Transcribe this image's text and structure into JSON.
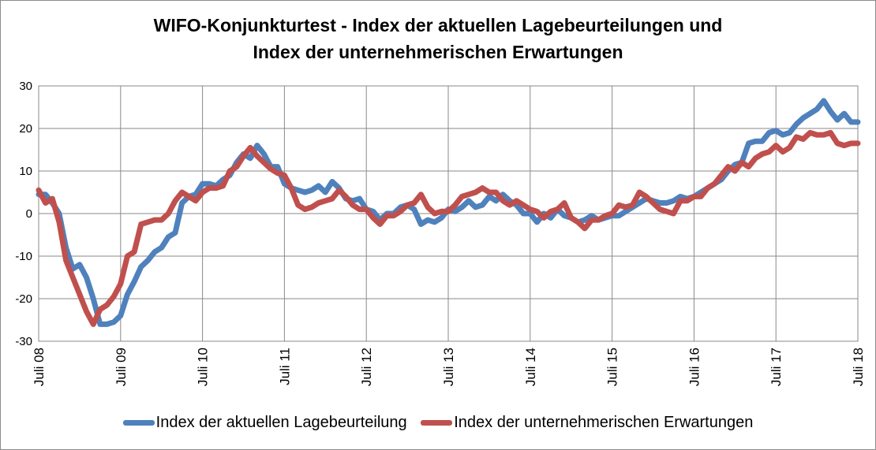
{
  "title_line1": "WIFO-Konjunkturtest - Index der aktuellen Lagebeurteilungen und",
  "title_line2": "Index der unternehmerischen Erwartungen",
  "chart_data": {
    "type": "line",
    "title": "WIFO-Konjunkturtest - Index der aktuellen Lagebeurteilungen und Index der unternehmerischen Erwartungen",
    "xlabel": "",
    "ylabel": "",
    "ylim": [
      -30,
      30
    ],
    "yticks": [
      -30,
      -20,
      -10,
      0,
      10,
      20,
      30
    ],
    "x_tick_labels": [
      "Juli 08",
      "Juli 09",
      "Juli 10",
      "Juli 11",
      "Juli 12",
      "Juli 13",
      "Juli 14",
      "Juli 15",
      "Juli 16",
      "Juli 17",
      "Juli 18"
    ],
    "grid": true,
    "legend_position": "bottom",
    "x_unit": "month index starting Juli 08",
    "series": [
      {
        "name": "Index der aktuellen Lagebeurteilung",
        "color": "#4f81bd",
        "values": [
          4.5,
          4.5,
          2.5,
          0,
          -8,
          -13,
          -12,
          -15,
          -20,
          -26,
          -26,
          -25.5,
          -24,
          -19,
          -16,
          -12.5,
          -11,
          -9,
          -8,
          -5.5,
          -4.5,
          2.5,
          4,
          4.5,
          7,
          7,
          6.5,
          8,
          9,
          12,
          14,
          13,
          16,
          14,
          11,
          11,
          7,
          6,
          5.5,
          5,
          5.5,
          6.5,
          5,
          7.5,
          6,
          3.5,
          3,
          3.5,
          1,
          0.5,
          -1.5,
          0,
          0,
          1.5,
          2,
          1,
          -2.5,
          -1.5,
          -2,
          -1,
          1,
          0.5,
          1.5,
          3,
          1.5,
          2,
          4,
          3,
          4.5,
          3,
          2,
          0,
          0,
          -2,
          0,
          -1,
          1,
          -0.5,
          -1,
          -2,
          -1.5,
          -0.5,
          -1.5,
          -1,
          -0.5,
          -0.5,
          0.5,
          1.5,
          2.5,
          3.5,
          3,
          2.5,
          2.5,
          3,
          4,
          3.5,
          4,
          5,
          6,
          7,
          8,
          10,
          11.5,
          12,
          16.5,
          17,
          17,
          19,
          19.5,
          18.5,
          19,
          21,
          22.5,
          23.5,
          24.5,
          26.5,
          24,
          22,
          23.5,
          21.5,
          21.5
        ]
      },
      {
        "name": "Index der unternehmerischen Erwartungen",
        "color": "#c0504d",
        "values": [
          5.5,
          2.5,
          3.5,
          -2,
          -11,
          -15,
          -19,
          -23,
          -26,
          -22.5,
          -21.5,
          -19.5,
          -16.5,
          -10,
          -9,
          -2.5,
          -2,
          -1.5,
          -1.5,
          0,
          3,
          5,
          4,
          3,
          5,
          6,
          6,
          6.5,
          10,
          11,
          13.5,
          15.5,
          13.5,
          12,
          10.5,
          9.5,
          9,
          6,
          2,
          1,
          1.5,
          2.5,
          3,
          3.5,
          5.5,
          4,
          2,
          1,
          1,
          -1,
          -2.5,
          -0.5,
          -0.5,
          0.5,
          2,
          2.5,
          4.5,
          1.5,
          0,
          0.5,
          0.5,
          2,
          4,
          4.5,
          5,
          6,
          5,
          5,
          3,
          2,
          3,
          2,
          1,
          0.5,
          -1,
          0.5,
          1,
          2.5,
          -1,
          -2,
          -3.5,
          -1.5,
          -1.5,
          -0.5,
          0,
          2,
          1.5,
          2,
          5,
          4,
          2.5,
          1,
          0.5,
          0,
          3,
          3,
          4,
          4,
          6,
          7,
          9,
          11,
          10,
          12,
          11,
          13,
          14,
          14.5,
          16,
          14.5,
          15.5,
          18,
          17.5,
          19,
          18.5,
          18.5,
          19,
          16.5,
          16,
          16.5,
          16.5
        ]
      }
    ]
  }
}
